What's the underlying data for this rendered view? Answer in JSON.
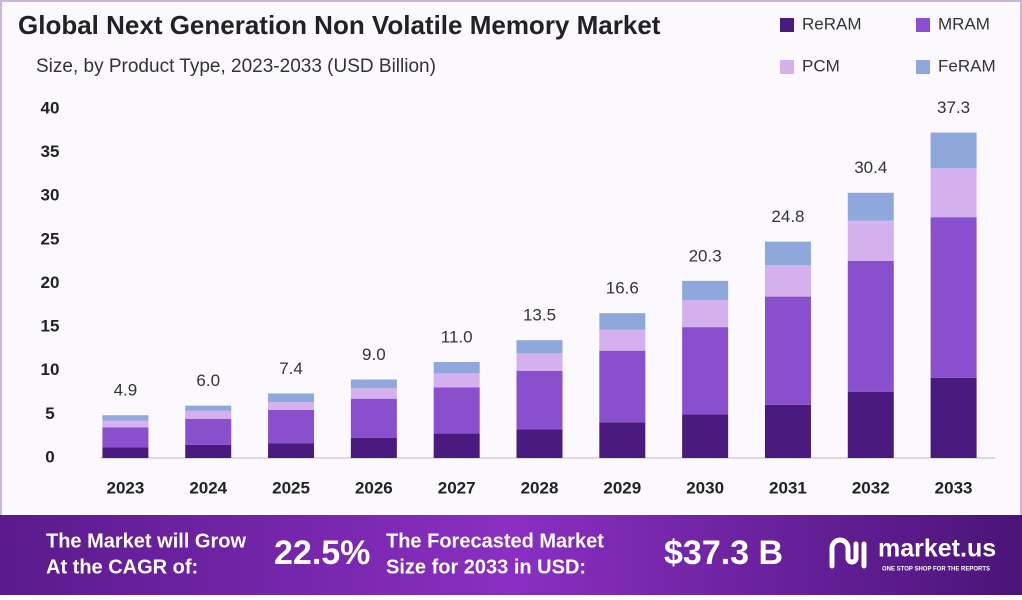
{
  "chart_data": {
    "type": "stacked_bar",
    "title": "Global Next Generation Non Volatile Memory Market",
    "subtitle": "Size, by Product Type, 2023-2033 (USD Billion)",
    "categories": [
      "2023",
      "2024",
      "2025",
      "2026",
      "2027",
      "2028",
      "2029",
      "2030",
      "2031",
      "2032",
      "2033"
    ],
    "series": [
      {
        "name": "ReRAM",
        "color": "#4b1a7e",
        "values": [
          1.2,
          1.5,
          1.7,
          2.3,
          2.8,
          3.3,
          4.1,
          5.0,
          6.1,
          7.6,
          9.2
        ]
      },
      {
        "name": "MRAM",
        "color": "#8a4fcc",
        "values": [
          2.3,
          3.0,
          3.8,
          4.5,
          5.3,
          6.7,
          8.2,
          10.0,
          12.4,
          15.0,
          18.4
        ]
      },
      {
        "name": "PCM",
        "color": "#d4b0ee",
        "values": [
          0.8,
          0.9,
          0.9,
          1.2,
          1.6,
          2.0,
          2.4,
          3.1,
          3.6,
          4.6,
          5.6
        ]
      },
      {
        "name": "FeRAM",
        "color": "#8fa8dc",
        "values": [
          0.6,
          0.6,
          1.0,
          1.0,
          1.3,
          1.5,
          1.9,
          2.2,
          2.7,
          3.2,
          4.1
        ]
      }
    ],
    "total_labels": [
      "4.9",
      "6.0",
      "7.4",
      "9.0",
      "11.0",
      "13.5",
      "16.6",
      "20.3",
      "24.8",
      "30.4",
      "37.3"
    ],
    "ylim": [
      0,
      40
    ],
    "yticks": [
      0,
      5,
      10,
      15,
      20,
      25,
      30,
      35,
      40
    ],
    "grid": false,
    "legend": "top-right"
  },
  "footer": {
    "cagr_text": [
      "The Market will Grow",
      "At the CAGR of:"
    ],
    "cagr": "22.5%",
    "forecast_text": [
      "The Forecasted Market",
      "Size for 2033 in USD:"
    ],
    "forecast": "$37.3 B",
    "brand": "market.us",
    "tagline": "ONE STOP SHOP FOR THE REPORTS"
  }
}
